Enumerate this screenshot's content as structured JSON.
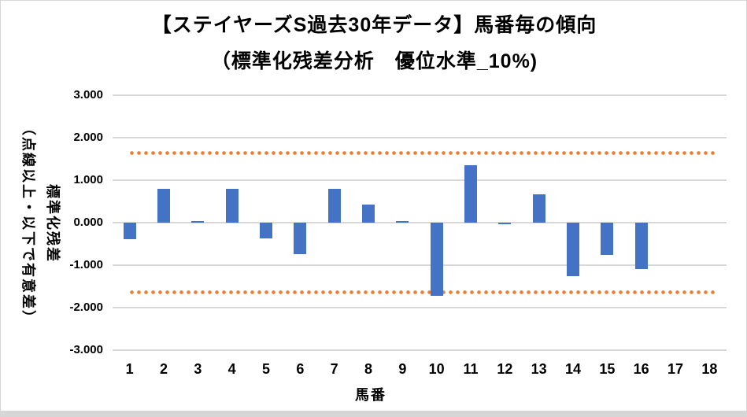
{
  "title": {
    "line1": "【ステイヤーズS過去30年データ】馬番毎の傾向",
    "line2": "（標準化残差分析　優位水準_10%)"
  },
  "y_axis": {
    "title_main": "標準化残差",
    "title_sub": "（点線以上・以下で有意差）",
    "tick_labels": [
      "3.000",
      "2.000",
      "1.000",
      "0.000",
      "-1.000",
      "-2.000",
      "-3.000"
    ]
  },
  "x_axis": {
    "title": "馬番",
    "tick_labels": [
      "1",
      "2",
      "3",
      "4",
      "5",
      "6",
      "7",
      "8",
      "9",
      "10",
      "11",
      "12",
      "13",
      "14",
      "15",
      "16",
      "17",
      "18"
    ]
  },
  "chart_data": {
    "type": "bar",
    "title": "【ステイヤーズS過去30年データ】馬番毎の傾向（標準化残差分析　優位水準_10%)",
    "categories": [
      "1",
      "2",
      "3",
      "4",
      "5",
      "6",
      "7",
      "8",
      "9",
      "10",
      "11",
      "12",
      "13",
      "14",
      "15",
      "16",
      "17",
      "18"
    ],
    "values": [
      -0.38,
      0.8,
      0.04,
      0.8,
      -0.37,
      -0.74,
      0.8,
      0.43,
      0.04,
      -1.72,
      1.36,
      -0.04,
      0.66,
      -1.26,
      -0.76,
      -1.09,
      0,
      0
    ],
    "xlabel": "馬番",
    "ylabel": "標準化残差（点線以上・以下で有意差）",
    "ylim": [
      -3,
      3
    ],
    "ytick_step": 1,
    "grid": true,
    "legend": "none",
    "significance_upper": 1.645,
    "significance_lower": -1.645,
    "bar_color": "#4472C4",
    "significance_color": "#ED7D31",
    "gridline_color": "#D9D9D9",
    "text_color": "#000000"
  }
}
